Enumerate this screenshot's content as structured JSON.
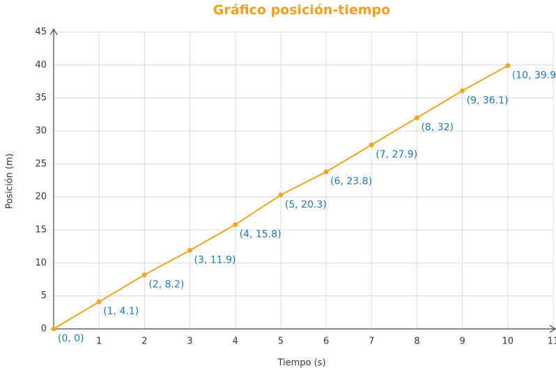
{
  "chart_data": {
    "type": "line",
    "title": "Gráfico posición-tiempo",
    "x_label": "Tiempo (s)",
    "y_label": "Posición (m)",
    "x": [
      0,
      1,
      2,
      3,
      4,
      5,
      6,
      7,
      8,
      9,
      10
    ],
    "series": [
      {
        "color": "#f0a520",
        "values": [
          0,
          4.1,
          8.2,
          11.9,
          15.8,
          20.3,
          23.8,
          27.9,
          32,
          36.1,
          39.9
        ],
        "value_labels": [
          "(0, 0)",
          "(1, 4.1)",
          "(2, 8.2)",
          "(3, 11.9)",
          "(4, 15.8)",
          "(5, 20.3)",
          "(6, 23.8)",
          "(7, 27.9)",
          "(8, 32)",
          "(9, 36.1)",
          "(10, 39.9)"
        ]
      }
    ],
    "xlim": [
      0,
      11
    ],
    "ylim": [
      0,
      45
    ],
    "xticks": [
      1,
      2,
      3,
      4,
      5,
      6,
      7,
      8,
      9,
      10,
      11
    ],
    "yticks": [
      0,
      5,
      10,
      15,
      20,
      25,
      30,
      35,
      40,
      45
    ],
    "grid": true
  }
}
